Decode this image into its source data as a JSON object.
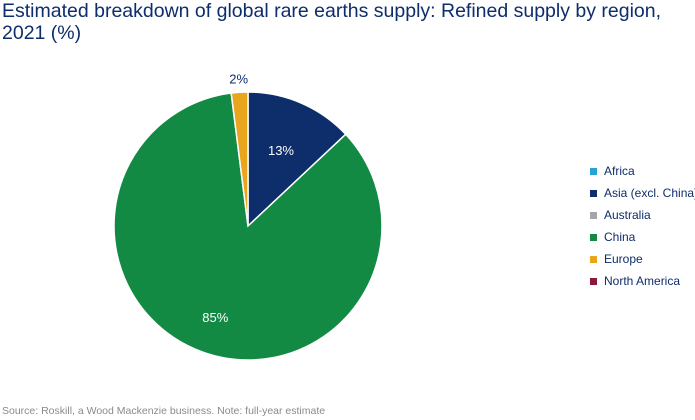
{
  "title": "Estimated breakdown of global rare earths supply: Refined supply by region, 2021 (%)",
  "source": "Source: Roskill, a Wood Mackenzie business. Note: full-year estimate",
  "chart_data": {
    "type": "pie",
    "title": "Estimated breakdown of global rare earths supply: Refined supply by region, 2021 (%)",
    "legend_position": "right",
    "slices": [
      {
        "name": "Africa",
        "value": 0,
        "label": "",
        "color": "#29a3d6"
      },
      {
        "name": "Asia (excl. China)",
        "value": 13,
        "label": "13%",
        "color": "#0e2d6b"
      },
      {
        "name": "Australia",
        "value": 0,
        "label": "",
        "color": "#a6a6a6"
      },
      {
        "name": "China",
        "value": 85,
        "label": "85%",
        "color": "#138a43"
      },
      {
        "name": "Europe",
        "value": 2,
        "label": "2%",
        "color": "#e9a51e"
      },
      {
        "name": "North America",
        "value": 0,
        "label": "",
        "color": "#8b1a3a"
      }
    ]
  }
}
